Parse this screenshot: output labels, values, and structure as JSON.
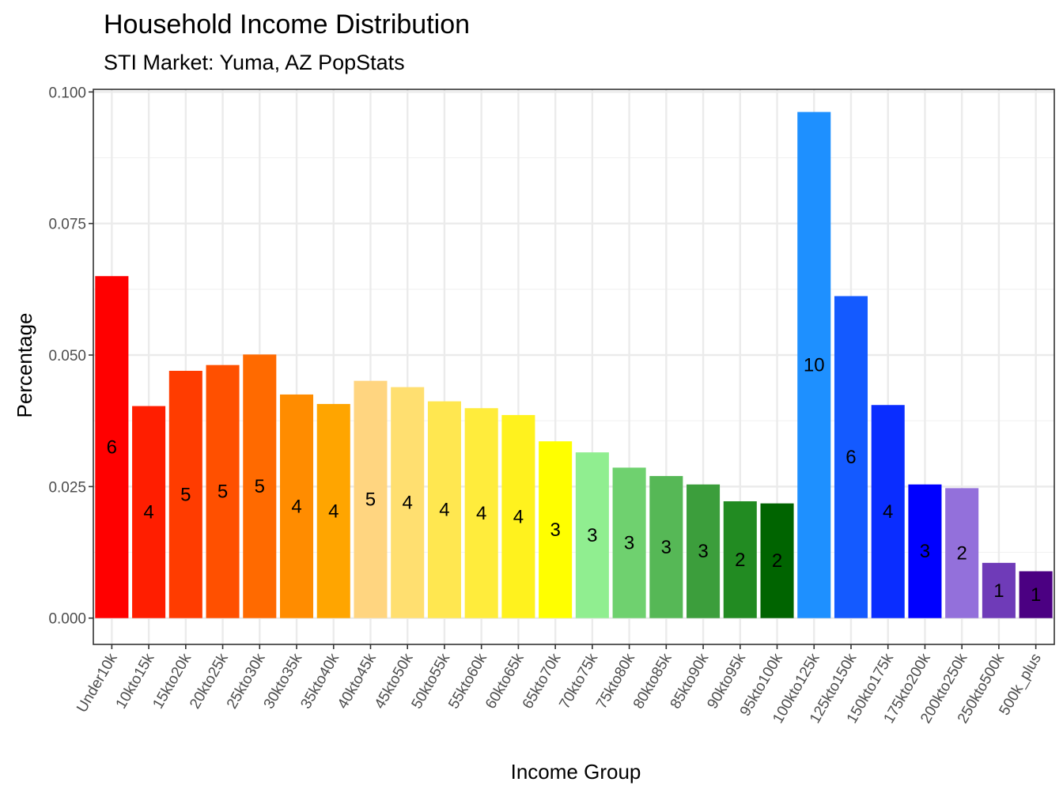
{
  "chart_data": {
    "type": "bar",
    "title": "Household Income Distribution",
    "subtitle": "STI Market: Yuma, AZ PopStats",
    "xlabel": "Income Group",
    "ylabel": "Percentage",
    "ylim": [
      -0.005,
      0.1005
    ],
    "yticks": [
      0.0,
      0.025,
      0.05,
      0.075,
      0.1
    ],
    "ytick_labels": [
      "0.000",
      "0.025",
      "0.050",
      "0.075",
      "0.100"
    ],
    "grid": true,
    "categories": [
      "Under10k",
      "10kto15k",
      "15kto20k",
      "20kto25k",
      "25kto30k",
      "30kto35k",
      "35kto40k",
      "40kto45k",
      "45kto50k",
      "50kto55k",
      "55kto60k",
      "60kto65k",
      "65kto70k",
      "70kto75k",
      "75kto80k",
      "80kto85k",
      "85kto90k",
      "90kto95k",
      "95kto100k",
      "100kto125k",
      "125kto150k",
      "150kto175k",
      "175kto200k",
      "200kto250k",
      "250kto500k",
      "500k_plus"
    ],
    "values": [
      0.065,
      0.0403,
      0.047,
      0.0481,
      0.0501,
      0.0425,
      0.0407,
      0.0451,
      0.0439,
      0.0412,
      0.0399,
      0.0386,
      0.0336,
      0.0315,
      0.0286,
      0.027,
      0.0254,
      0.0222,
      0.0218,
      0.0962,
      0.0612,
      0.0405,
      0.0254,
      0.0247,
      0.0105,
      0.0089
    ],
    "data_labels": [
      "6",
      "4",
      "5",
      "5",
      "5",
      "4",
      "4",
      "5",
      "4",
      "4",
      "4",
      "4",
      "3",
      "3",
      "3",
      "3",
      "3",
      "2",
      "2",
      "10",
      "6",
      "4",
      "3",
      "2",
      "1",
      "1"
    ],
    "colors": [
      "#FF0000",
      "#FF1E00",
      "#FF3C00",
      "#FF5000",
      "#FF6A00",
      "#FF8C00",
      "#FFA500",
      "#FFD580",
      "#FFDF70",
      "#FFE750",
      "#FFEC3C",
      "#FFF21E",
      "#FFFF00",
      "#90EE90",
      "#6FD16F",
      "#56B856",
      "#3C9E3C",
      "#228B22",
      "#006400",
      "#1E90FF",
      "#145AFF",
      "#0A2DFF",
      "#0000FF",
      "#9370DB",
      "#6F3BB8",
      "#4B0082"
    ]
  }
}
